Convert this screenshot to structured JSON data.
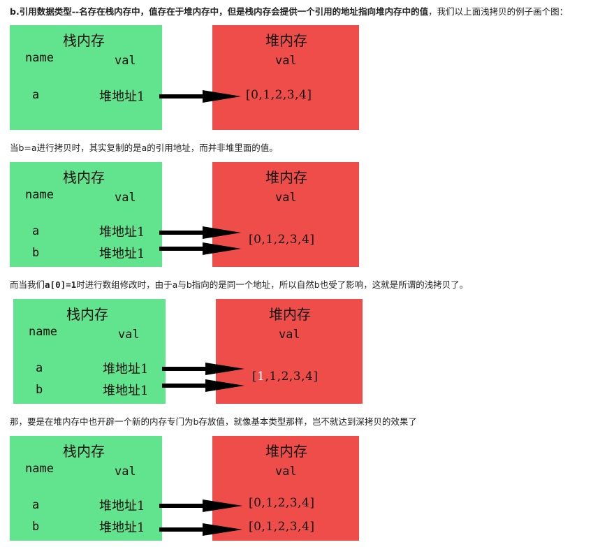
{
  "paragraphs": {
    "p1_bold": "b.引用数据类型--名存在栈内存中，值存在于堆内存中，但是栈内存会提供一个引用的地址指向堆内存中的值",
    "p1_rest": "，我们以上面浅拷贝的例子画个图：",
    "p2": "当b=a进行拷贝时，其实复制的是a的引用地址，而并非堆里面的值。",
    "p3_pre": "而当我们",
    "p3_code": "a[0]=1",
    "p3_post": "时进行数组修改时，由于a与b指向的是同一个地址，所以自然b也受了影响，这就是所谓的浅拷贝了。",
    "p4": "那，要是在堆内存中也开辟一个新的内存专门为b存放值，就像基本类型那样，岂不就达到深拷贝的效果了"
  },
  "diagrams": [
    {
      "stack_title": "栈内存",
      "stack_name": "name",
      "stack_val": "val",
      "vars": [
        {
          "name": "a",
          "addr": "堆地址1"
        }
      ],
      "heap_title": "堆内存",
      "heap_val": "val",
      "arrays": [
        {
          "open": "[",
          "first": "0",
          "rest": ",1,2,3,4]"
        }
      ]
    },
    {
      "stack_title": "栈内存",
      "stack_name": "name",
      "stack_val": "val",
      "vars": [
        {
          "name": "a",
          "addr": "堆地址1"
        },
        {
          "name": "b",
          "addr": "堆地址1"
        }
      ],
      "heap_title": "堆内存",
      "heap_val": "val",
      "arrays": [
        {
          "open": "[",
          "first": "0",
          "rest": ",1,2,3,4]"
        }
      ]
    },
    {
      "stack_title": "栈内存",
      "stack_name": "name",
      "stack_val": "val",
      "vars": [
        {
          "name": "a",
          "addr": "堆地址1"
        },
        {
          "name": "b",
          "addr": "堆地址1"
        }
      ],
      "heap_title": "堆内存",
      "heap_val": "val",
      "arrays": [
        {
          "open": "[",
          "first": "1",
          "rest": ",1,2,3,4]"
        }
      ]
    },
    {
      "stack_title": "栈内存",
      "stack_name": "name",
      "stack_val": "val",
      "vars": [
        {
          "name": "a",
          "addr": "堆地址1"
        },
        {
          "name": "b",
          "addr": "堆地址1"
        }
      ],
      "heap_title": "堆内存",
      "heap_val": "val",
      "arrays": [
        {
          "open": "[",
          "first": "0",
          "rest": ",1,2,3,4]"
        },
        {
          "open": "[",
          "first": "0",
          "rest": ",1,2,3,4]"
        }
      ]
    }
  ],
  "colors": {
    "stack": "#62e38d",
    "heap": "#ee4d4a",
    "highlight": "#ffffff"
  }
}
